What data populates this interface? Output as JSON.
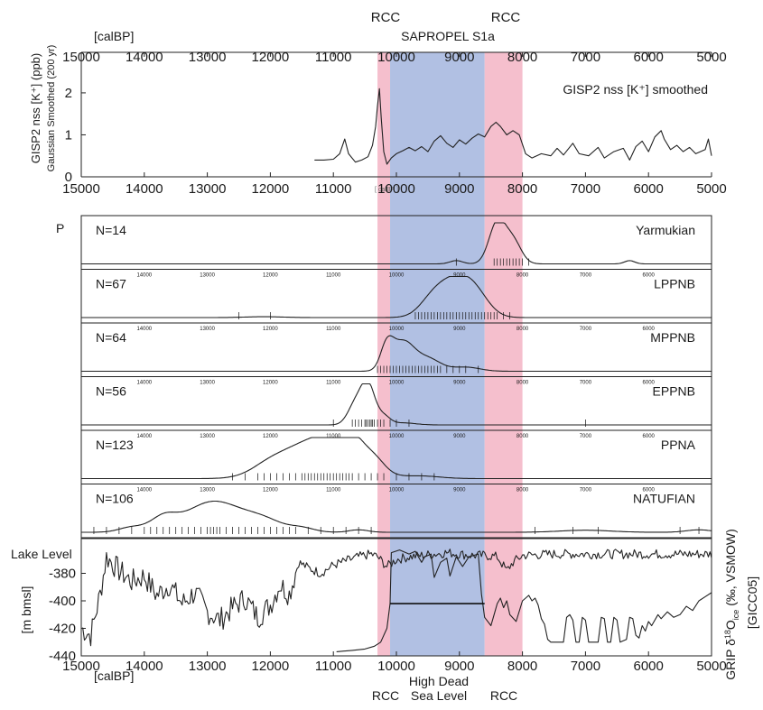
{
  "chart_data": {
    "type": "line",
    "colors": {
      "rcc_band": "#f4b8c8",
      "high_sea_band": "#a9b9e0",
      "line": "#222222"
    },
    "x_axis": {
      "label": "[calBP]",
      "range": [
        15000,
        5000
      ],
      "ticks": [
        15000,
        14000,
        13000,
        12000,
        11000,
        10000,
        9000,
        8000,
        7000,
        6000,
        5000
      ],
      "small_ticks": [
        14000,
        13000,
        12000,
        11000,
        10000,
        9000,
        8000,
        7000,
        6000
      ]
    },
    "bands": [
      {
        "from": 10300,
        "to": 10100,
        "kind": "rcc"
      },
      {
        "from": 10100,
        "to": 8600,
        "kind": "high_sea"
      },
      {
        "from": 8600,
        "to": 8000,
        "kind": "rcc"
      }
    ],
    "annotations": {
      "rcc_top_left": "RCC",
      "rcc_top_right": "RCC",
      "sapropel": "SAPROPEL S1a",
      "rcc_bottom_left": "RCC",
      "rcc_bottom_right": "RCC",
      "high_sea_line1": "High Dead",
      "high_sea_line2": "Sea Level",
      "calbp_small": "[ calBP ]"
    },
    "top_panel": {
      "ylabel_line1": "GISP2 nss [K⁺] (ppb)",
      "ylabel_line2": "Gaussian Smoothed (200 yr)",
      "series_label": "GISP2 nss [K⁺] smoothed",
      "ylim": [
        0,
        2.6
      ],
      "yticks": [
        0,
        1,
        2
      ],
      "series": [
        [
          11300,
          0.4
        ],
        [
          11150,
          0.4
        ],
        [
          11000,
          0.42
        ],
        [
          10900,
          0.55
        ],
        [
          10820,
          0.9
        ],
        [
          10760,
          0.55
        ],
        [
          10650,
          0.35
        ],
        [
          10550,
          0.4
        ],
        [
          10450,
          0.48
        ],
        [
          10380,
          0.75
        ],
        [
          10330,
          1.2
        ],
        [
          10300,
          1.7
        ],
        [
          10270,
          2.1
        ],
        [
          10240,
          1.4
        ],
        [
          10200,
          0.6
        ],
        [
          10150,
          0.3
        ],
        [
          10080,
          0.45
        ],
        [
          10000,
          0.55
        ],
        [
          9900,
          0.62
        ],
        [
          9800,
          0.7
        ],
        [
          9700,
          0.62
        ],
        [
          9600,
          0.72
        ],
        [
          9500,
          0.6
        ],
        [
          9400,
          0.85
        ],
        [
          9300,
          0.98
        ],
        [
          9200,
          0.8
        ],
        [
          9100,
          0.7
        ],
        [
          9000,
          0.88
        ],
        [
          8900,
          0.78
        ],
        [
          8800,
          0.92
        ],
        [
          8700,
          1.02
        ],
        [
          8600,
          0.95
        ],
        [
          8500,
          1.2
        ],
        [
          8420,
          1.3
        ],
        [
          8350,
          1.2
        ],
        [
          8250,
          1.0
        ],
        [
          8150,
          1.1
        ],
        [
          8050,
          1.0
        ],
        [
          7950,
          0.55
        ],
        [
          7850,
          0.45
        ],
        [
          7700,
          0.55
        ],
        [
          7550,
          0.5
        ],
        [
          7450,
          0.68
        ],
        [
          7350,
          0.52
        ],
        [
          7200,
          0.8
        ],
        [
          7100,
          0.55
        ],
        [
          6950,
          0.5
        ],
        [
          6800,
          0.7
        ],
        [
          6700,
          0.45
        ],
        [
          6550,
          0.6
        ],
        [
          6400,
          0.68
        ],
        [
          6300,
          0.4
        ],
        [
          6200,
          0.72
        ],
        [
          6100,
          0.85
        ],
        [
          6000,
          0.6
        ],
        [
          5900,
          0.95
        ],
        [
          5800,
          1.1
        ],
        [
          5750,
          0.9
        ],
        [
          5650,
          0.65
        ],
        [
          5550,
          0.75
        ],
        [
          5450,
          0.6
        ],
        [
          5350,
          0.7
        ],
        [
          5250,
          0.55
        ],
        [
          5100,
          0.65
        ],
        [
          5050,
          0.9
        ],
        [
          5000,
          0.5
        ]
      ]
    },
    "y_axis_p": "P",
    "phases": [
      {
        "name": "Yarmukian",
        "count": "N=14",
        "peaks": [
          [
            8400,
            1.0,
            130
          ],
          [
            8150,
            0.55,
            130
          ],
          [
            9050,
            0.08,
            100
          ],
          [
            6300,
            0.08,
            80
          ]
        ],
        "rug": [
          8450,
          8400,
          8350,
          8300,
          8250,
          8200,
          8150,
          8100,
          8050,
          8000,
          7900,
          9050
        ]
      },
      {
        "name": "LPPNB",
        "count": "N=67",
        "peaks": [
          [
            9100,
            0.85,
            280
          ],
          [
            8750,
            0.45,
            220
          ],
          [
            9450,
            0.25,
            200
          ],
          [
            12100,
            0.02,
            300
          ]
        ],
        "rug": [
          9700,
          9650,
          9600,
          9550,
          9500,
          9450,
          9400,
          9350,
          9300,
          9250,
          9200,
          9150,
          9100,
          9050,
          9000,
          8950,
          8900,
          8850,
          8800,
          8750,
          8700,
          8650,
          8600,
          8550,
          8500,
          8450,
          8400,
          8300,
          8200,
          12500,
          12000
        ]
      },
      {
        "name": "MPPNB",
        "count": "N=64",
        "peaks": [
          [
            9900,
            0.7,
            180
          ],
          [
            10150,
            0.55,
            100
          ],
          [
            9500,
            0.3,
            200
          ],
          [
            8900,
            0.1,
            220
          ]
        ],
        "rug": [
          10300,
          10250,
          10200,
          10150,
          10100,
          10050,
          10000,
          9950,
          9900,
          9850,
          9800,
          9750,
          9700,
          9650,
          9600,
          9550,
          9500,
          9450,
          9400,
          9350,
          9300,
          9200,
          9100,
          9000,
          8900,
          8700
        ]
      },
      {
        "name": "EPPNB",
        "count": "N=56",
        "peaks": [
          [
            10450,
            0.95,
            110
          ],
          [
            10650,
            0.5,
            120
          ],
          [
            10200,
            0.2,
            100
          ],
          [
            9900,
            0.05,
            200
          ]
        ],
        "rug": [
          10700,
          10650,
          10600,
          10550,
          10500,
          10480,
          10450,
          10420,
          10400,
          10380,
          10350,
          10300,
          10250,
          10200,
          10100,
          10000,
          9800,
          11000,
          7000
        ]
      },
      {
        "name": "PPNA",
        "count": "N=123",
        "peaks": [
          [
            11200,
            1.0,
            500
          ],
          [
            10700,
            0.55,
            250
          ],
          [
            12000,
            0.25,
            300
          ],
          [
            10300,
            0.18,
            150
          ],
          [
            9600,
            0.06,
            300
          ]
        ],
        "rug": [
          12600,
          12400,
          12200,
          12100,
          12000,
          11900,
          11800,
          11700,
          11600,
          11500,
          11450,
          11400,
          11350,
          11300,
          11250,
          11200,
          11150,
          11100,
          11050,
          11000,
          10950,
          10900,
          10850,
          10800,
          10750,
          10700,
          10600,
          10500,
          10400,
          10300,
          10200,
          10000,
          9800,
          9600,
          9400
        ]
      },
      {
        "name": "NATUFIAN",
        "count": "N=106",
        "peaks": [
          [
            12900,
            0.75,
            450
          ],
          [
            13700,
            0.3,
            200
          ],
          [
            14200,
            0.12,
            200
          ],
          [
            12100,
            0.25,
            300
          ],
          [
            11500,
            0.1,
            200
          ],
          [
            10600,
            0.06,
            150
          ],
          [
            7000,
            0.05,
            400
          ],
          [
            5200,
            0.06,
            200
          ]
        ],
        "rug": [
          14800,
          14600,
          14400,
          14200,
          14000,
          13900,
          13800,
          13700,
          13600,
          13500,
          13400,
          13300,
          13200,
          13100,
          13000,
          12950,
          12900,
          12850,
          12800,
          12700,
          12600,
          12500,
          12400,
          12300,
          12200,
          12100,
          12000,
          11900,
          11800,
          11700,
          11600,
          11400,
          11200,
          11000,
          10800,
          10600,
          10400,
          7800,
          7200,
          6800,
          5500,
          5200
        ]
      }
    ],
    "bottom_panel": {
      "title_left": "Lake Level",
      "ylabel_left": "[m bmsl]",
      "ylabel_right_1": "GRIP δ",
      "ylabel_right_2": "18",
      "ylabel_right_3": "O",
      "ylabel_right_4": "ice",
      "ylabel_right_5": " (‰, VSMOW)",
      "ylabel_right_6": "[GICC05]",
      "ylim": [
        -440,
        -360
      ],
      "yticks": [
        -440,
        -420,
        -400,
        -380
      ],
      "lake_level": [
        [
          10950,
          -437
        ],
        [
          10700,
          -436
        ],
        [
          10500,
          -435
        ],
        [
          10350,
          -433
        ],
        [
          10250,
          -430
        ],
        [
          10150,
          -420
        ],
        [
          10100,
          -402
        ],
        [
          10080,
          -365
        ],
        [
          9950,
          -363
        ],
        [
          9800,
          -366
        ],
        [
          9700,
          -364
        ],
        [
          9600,
          -372
        ],
        [
          9550,
          -368
        ],
        [
          9450,
          -366
        ],
        [
          9400,
          -383
        ],
        [
          9300,
          -372
        ],
        [
          9200,
          -369
        ],
        [
          9150,
          -382
        ],
        [
          9050,
          -368
        ],
        [
          8950,
          -375
        ],
        [
          8850,
          -368
        ],
        [
          8700,
          -366
        ],
        [
          8650,
          -395
        ],
        [
          8600,
          -412
        ],
        [
          8500,
          -418
        ],
        [
          8450,
          -410
        ],
        [
          8400,
          -402
        ],
        [
          8350,
          -398
        ],
        [
          8300,
          -405
        ],
        [
          8250,
          -400
        ],
        [
          8200,
          -410
        ],
        [
          8100,
          -415
        ],
        [
          8000,
          -400
        ],
        [
          7950,
          -398
        ],
        [
          7900,
          -396
        ],
        [
          7850,
          -400
        ],
        [
          7800,
          -398
        ],
        [
          7750,
          -403
        ],
        [
          7700,
          -413
        ],
        [
          7650,
          -417
        ],
        [
          7600,
          -428
        ],
        [
          7550,
          -430
        ],
        [
          7450,
          -430
        ],
        [
          7350,
          -430
        ],
        [
          7300,
          -412
        ],
        [
          7250,
          -410
        ],
        [
          7200,
          -414
        ],
        [
          7150,
          -430
        ],
        [
          7100,
          -430
        ],
        [
          7050,
          -412
        ],
        [
          7000,
          -414
        ],
        [
          6950,
          -430
        ],
        [
          6900,
          -430
        ],
        [
          6800,
          -430
        ],
        [
          6750,
          -412
        ],
        [
          6700,
          -413
        ],
        [
          6650,
          -430
        ],
        [
          6600,
          -430
        ],
        [
          6550,
          -412
        ],
        [
          6500,
          -414
        ],
        [
          6450,
          -430
        ],
        [
          6350,
          -428
        ],
        [
          6300,
          -412
        ],
        [
          6250,
          -413
        ],
        [
          6200,
          -425
        ],
        [
          6150,
          -427
        ],
        [
          6100,
          -418
        ],
        [
          6050,
          -422
        ],
        [
          6000,
          -415
        ],
        [
          5950,
          -418
        ],
        [
          5850,
          -410
        ],
        [
          5800,
          -413
        ],
        [
          5700,
          -408
        ],
        [
          5600,
          -412
        ],
        [
          5500,
          -410
        ],
        [
          5400,
          -404
        ],
        [
          5300,
          -407
        ],
        [
          5200,
          -400
        ],
        [
          5100,
          -397
        ],
        [
          5000,
          -394
        ]
      ],
      "high_stand": [
        [
          10100,
          -402
        ],
        [
          8600,
          -402
        ]
      ],
      "grip": {
        "anchors": [
          [
            15000,
            -420
          ],
          [
            14850,
            -425
          ],
          [
            14700,
            -395
          ],
          [
            14600,
            -368
          ],
          [
            14400,
            -378
          ],
          [
            14200,
            -386
          ],
          [
            14000,
            -382
          ],
          [
            13800,
            -396
          ],
          [
            13600,
            -388
          ],
          [
            13400,
            -402
          ],
          [
            13200,
            -394
          ],
          [
            13000,
            -408
          ],
          [
            12800,
            -414
          ],
          [
            12600,
            -405
          ],
          [
            12400,
            -398
          ],
          [
            12200,
            -412
          ],
          [
            12000,
            -403
          ],
          [
            11850,
            -388
          ],
          [
            11700,
            -395
          ],
          [
            11550,
            -372
          ],
          [
            11400,
            -376
          ],
          [
            11200,
            -380
          ],
          [
            11000,
            -374
          ],
          [
            10800,
            -371
          ],
          [
            10600,
            -368
          ],
          [
            10400,
            -366
          ],
          [
            10300,
            -368
          ],
          [
            10150,
            -375
          ],
          [
            10000,
            -370
          ],
          [
            9800,
            -368
          ],
          [
            9600,
            -367
          ],
          [
            9400,
            -366
          ],
          [
            9200,
            -365
          ],
          [
            9000,
            -366
          ],
          [
            8800,
            -367
          ],
          [
            8600,
            -367
          ],
          [
            8400,
            -368
          ],
          [
            8250,
            -378
          ],
          [
            8150,
            -372
          ],
          [
            8000,
            -367
          ],
          [
            7500,
            -366
          ],
          [
            7000,
            -366
          ],
          [
            6500,
            -366
          ],
          [
            6000,
            -366
          ],
          [
            5500,
            -366
          ],
          [
            5000,
            -366
          ]
        ],
        "amp_glacial": 9,
        "amp_holocene": 3.5
      }
    }
  }
}
